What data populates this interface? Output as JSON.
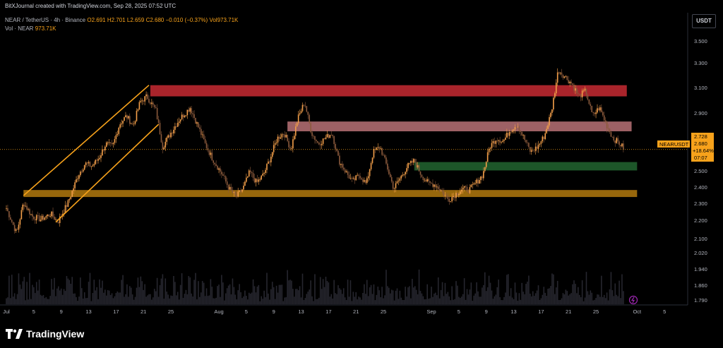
{
  "header": {
    "watermark": "BitXJournal created with TradingView.com, Sep 28, 2025 07:52 UTC",
    "legend": {
      "symbol": "NEAR / TetherUS · 4h · Binance",
      "open": "O2.691",
      "high": "H2.701",
      "low": "L2.659",
      "close": "C2.680",
      "change": "−0.010 (−0.37%)",
      "volume": "Vol973.71K",
      "vol_label": "Vol · NEAR",
      "vol_value": "973.71K"
    }
  },
  "price_axis": {
    "unit": "USDT"
  },
  "price_tag": {
    "ticker": "NEARUSDT",
    "line1": "2.728",
    "line2": "2.680",
    "line3": "+18.64%",
    "line4": "07:07"
  },
  "brand": {
    "name": "TradingView"
  },
  "colors": {
    "bull": "#f5a04a",
    "bear": "#8b5a3c",
    "volume_bar": "#26262e",
    "zone_red": "#c72a33",
    "zone_pink": "#e08a90",
    "zone_green": "#2a7a3a",
    "zone_orange": "#c98a10",
    "channel": "#f7a21b"
  },
  "chart_data": {
    "type": "candlestick",
    "y_ticks": [
      3.5,
      3.3,
      3.1,
      2.9,
      2.7,
      2.5,
      2.4,
      2.3,
      2.2,
      2.1,
      2.02,
      1.94,
      1.86,
      1.79
    ],
    "y_tick_labels": [
      "3.500",
      "3.300",
      "3.100",
      "2.900",
      "2.700",
      "2.500",
      "2.400",
      "2.300",
      "2.200",
      "2.100",
      "2.020",
      "1.940",
      "1.860",
      "1.790"
    ],
    "x_ticks": [
      {
        "day": 1,
        "label": "Jul",
        "month": true
      },
      {
        "day": 5,
        "label": "5"
      },
      {
        "day": 9,
        "label": "9"
      },
      {
        "day": 13,
        "label": "13"
      },
      {
        "day": 17,
        "label": "17"
      },
      {
        "day": 21,
        "label": "21"
      },
      {
        "day": 25,
        "label": "25"
      },
      {
        "day": 32,
        "label": "Aug",
        "month": true
      },
      {
        "day": 36,
        "label": "5"
      },
      {
        "day": 40,
        "label": "9"
      },
      {
        "day": 44,
        "label": "13"
      },
      {
        "day": 48,
        "label": "17"
      },
      {
        "day": 52,
        "label": "21"
      },
      {
        "day": 56,
        "label": "25"
      },
      {
        "day": 63,
        "label": "Sep",
        "month": true
      },
      {
        "day": 67,
        "label": "5"
      },
      {
        "day": 71,
        "label": "9"
      },
      {
        "day": 75,
        "label": "13"
      },
      {
        "day": 79,
        "label": "17"
      },
      {
        "day": 83,
        "label": "21"
      },
      {
        "day": 87,
        "label": "25"
      },
      {
        "day": 93,
        "label": "Oct",
        "month": true
      },
      {
        "day": 97,
        "label": "5"
      }
    ],
    "price_path": [
      [
        1,
        2.26
      ],
      [
        2.5,
        2.08
      ],
      [
        3.5,
        2.3
      ],
      [
        4.8,
        2.2
      ],
      [
        6,
        2.18
      ],
      [
        7.5,
        2.22
      ],
      [
        8.5,
        2.16
      ],
      [
        10,
        2.3
      ],
      [
        11.5,
        2.5
      ],
      [
        12.5,
        2.58
      ],
      [
        13.5,
        2.56
      ],
      [
        14.5,
        2.62
      ],
      [
        15.5,
        2.72
      ],
      [
        16.5,
        2.7
      ],
      [
        17.5,
        2.86
      ],
      [
        18.5,
        2.92
      ],
      [
        19.5,
        2.85
      ],
      [
        20.5,
        3.02
      ],
      [
        21.5,
        3.06
      ],
      [
        22.8,
        2.96
      ],
      [
        23.8,
        2.7
      ],
      [
        25,
        2.8
      ],
      [
        26.3,
        2.9
      ],
      [
        27.8,
        2.98
      ],
      [
        29,
        2.84
      ],
      [
        30,
        2.72
      ],
      [
        31,
        2.62
      ],
      [
        32.5,
        2.5
      ],
      [
        33.5,
        2.4
      ],
      [
        34.5,
        2.34
      ],
      [
        35.5,
        2.4
      ],
      [
        36.5,
        2.52
      ],
      [
        37.5,
        2.44
      ],
      [
        38.5,
        2.5
      ],
      [
        39.5,
        2.62
      ],
      [
        40.5,
        2.76
      ],
      [
        41.5,
        2.8
      ],
      [
        42.5,
        2.68
      ],
      [
        43.5,
        2.9
      ],
      [
        44.5,
        3.02
      ],
      [
        45.5,
        2.8
      ],
      [
        46.5,
        2.72
      ],
      [
        47.5,
        2.76
      ],
      [
        48.5,
        2.8
      ],
      [
        49.5,
        2.6
      ],
      [
        50.5,
        2.52
      ],
      [
        51.5,
        2.45
      ],
      [
        52.5,
        2.5
      ],
      [
        53.5,
        2.43
      ],
      [
        54.5,
        2.66
      ],
      [
        55.5,
        2.7
      ],
      [
        56.5,
        2.56
      ],
      [
        57.5,
        2.4
      ],
      [
        58.5,
        2.48
      ],
      [
        59.5,
        2.56
      ],
      [
        60.5,
        2.6
      ],
      [
        61.5,
        2.5
      ],
      [
        62.5,
        2.44
      ],
      [
        63.5,
        2.43
      ],
      [
        64.5,
        2.38
      ],
      [
        65.5,
        2.32
      ],
      [
        66.5,
        2.36
      ],
      [
        67.5,
        2.4
      ],
      [
        68.5,
        2.39
      ],
      [
        69.5,
        2.44
      ],
      [
        70.5,
        2.5
      ],
      [
        71.5,
        2.7
      ],
      [
        72.5,
        2.76
      ],
      [
        73.5,
        2.74
      ],
      [
        74.5,
        2.82
      ],
      [
        75.5,
        2.86
      ],
      [
        76.5,
        2.76
      ],
      [
        77.5,
        2.66
      ],
      [
        78.5,
        2.7
      ],
      [
        79.5,
        2.78
      ],
      [
        80.5,
        2.95
      ],
      [
        81.5,
        3.25
      ],
      [
        82.5,
        3.2
      ],
      [
        83.5,
        3.15
      ],
      [
        84.5,
        3.06
      ],
      [
        85.5,
        3.1
      ],
      [
        86.5,
        2.92
      ],
      [
        87.5,
        2.98
      ],
      [
        88.5,
        2.86
      ],
      [
        89.5,
        2.76
      ],
      [
        90.5,
        2.72
      ],
      [
        91.2,
        2.68
      ]
    ],
    "zones": [
      {
        "name": "red",
        "day_start": 22,
        "day_end": 91.5,
        "top": 3.14,
        "bottom": 3.06
      },
      {
        "name": "pink",
        "day_start": 42,
        "day_end": 92.2,
        "top": 2.88,
        "bottom": 2.81
      },
      {
        "name": "green",
        "day_start": 60.5,
        "day_end": 93,
        "top": 2.59,
        "bottom": 2.53
      },
      {
        "name": "orange",
        "day_start": 3.5,
        "day_end": 93,
        "top": 2.39,
        "bottom": 2.34
      }
    ],
    "channel_lines": [
      {
        "x1": 3.5,
        "y1": 2.35,
        "x2": 21.8,
        "y2": 3.14
      },
      {
        "x1": 8.2,
        "y1": 2.16,
        "x2": 23.2,
        "y2": 2.86
      }
    ],
    "last_price": 2.68
  }
}
